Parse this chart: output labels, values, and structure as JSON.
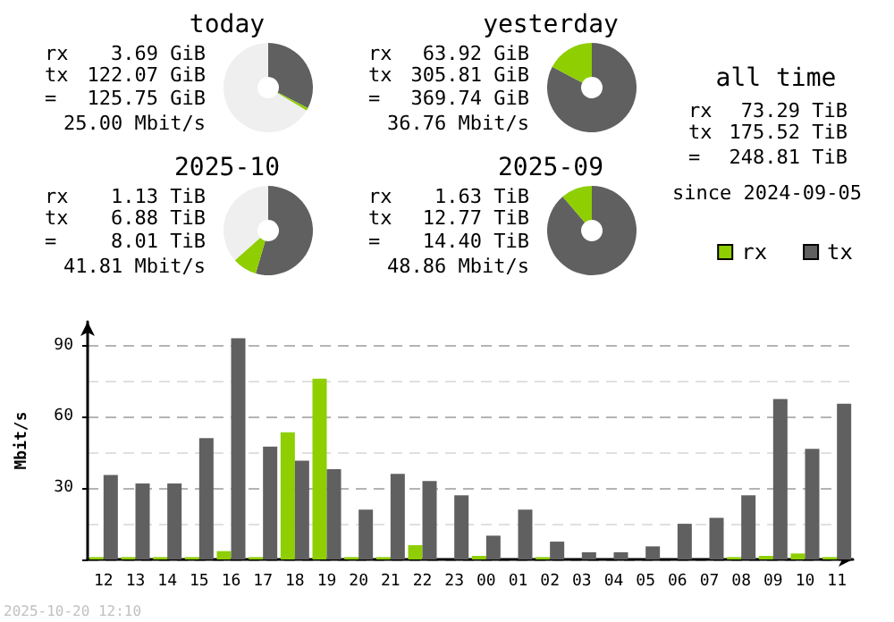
{
  "chart_data": [
    {
      "type": "donut",
      "title": "today",
      "categories": [
        null,
        null,
        null
      ],
      "values": [
        32.6,
        1.0,
        66.4
      ],
      "colors": [
        "#606060",
        "#8fce00",
        "#efefef"
      ],
      "annotations": [
        "rx 3.69 GiB",
        "tx 122.07 GiB",
        "= 125.75 GiB",
        "25.00 Mbit/s"
      ]
    },
    {
      "type": "donut",
      "title": "yesterday",
      "categories": [
        null,
        null
      ],
      "values": [
        82.7,
        17.3
      ],
      "colors": [
        "#606060",
        "#8fce00"
      ],
      "annotations": [
        "rx 63.92 GiB",
        "tx 305.81 GiB",
        "= 369.74 GiB",
        "36.76 Mbit/s"
      ]
    },
    {
      "type": "other",
      "title": "all time",
      "annotations": [
        "rx 73.29 TiB",
        "tx 175.52 TiB",
        "= 248.81 TiB",
        "since 2024-09-05"
      ]
    },
    {
      "type": "donut",
      "title": "2025-10",
      "categories": [
        null,
        null,
        null
      ],
      "values": [
        54.5,
        8.9,
        36.6
      ],
      "colors": [
        "#606060",
        "#8fce00",
        "#efefef"
      ],
      "annotations": [
        "rx 1.13 TiB",
        "tx 6.88 TiB",
        "= 8.01 TiB",
        "41.81 Mbit/s"
      ]
    },
    {
      "type": "donut",
      "title": "2025-09",
      "categories": [
        null,
        null
      ],
      "values": [
        88.7,
        11.3
      ],
      "colors": [
        "#606060",
        "#8fce00"
      ],
      "annotations": [
        "rx 1.63 TiB",
        "tx 12.77 TiB",
        "= 14.40 TiB",
        "48.86 Mbit/s"
      ]
    },
    {
      "type": "bar",
      "ylabel": "Mbit/s",
      "categories": [
        "12",
        "13",
        "14",
        "15",
        "16",
        "17",
        "18",
        "19",
        "20",
        "21",
        "22",
        "23",
        "00",
        "01",
        "02",
        "03",
        "04",
        "05",
        "06",
        "07",
        "08",
        "09",
        "10",
        "11"
      ],
      "series": [
        {
          "name": "rx",
          "color": "#8fce00",
          "values": [
            1,
            1,
            1,
            1,
            3.5,
            1,
            53.5,
            76,
            1,
            1,
            6,
            0,
            1.5,
            0,
            1,
            0,
            0,
            0,
            0,
            0,
            1,
            1.5,
            2.5,
            1
          ]
        },
        {
          "name": "tx",
          "color": "#606060",
          "values": [
            35.5,
            32,
            32,
            51,
            93,
            47.5,
            41.5,
            38,
            21,
            36,
            33,
            27,
            10,
            21,
            7.5,
            3,
            3,
            5.5,
            15,
            17.5,
            27,
            67.5,
            46.5,
            65.5
          ]
        }
      ],
      "ylim": [
        0,
        100
      ],
      "yticks": [
        {
          "value": 0,
          "label": null
        },
        30,
        60,
        90
      ],
      "grid": "y",
      "legend": "top right",
      "annotations": [
        "2025-10-20 12:10"
      ]
    }
  ]
}
